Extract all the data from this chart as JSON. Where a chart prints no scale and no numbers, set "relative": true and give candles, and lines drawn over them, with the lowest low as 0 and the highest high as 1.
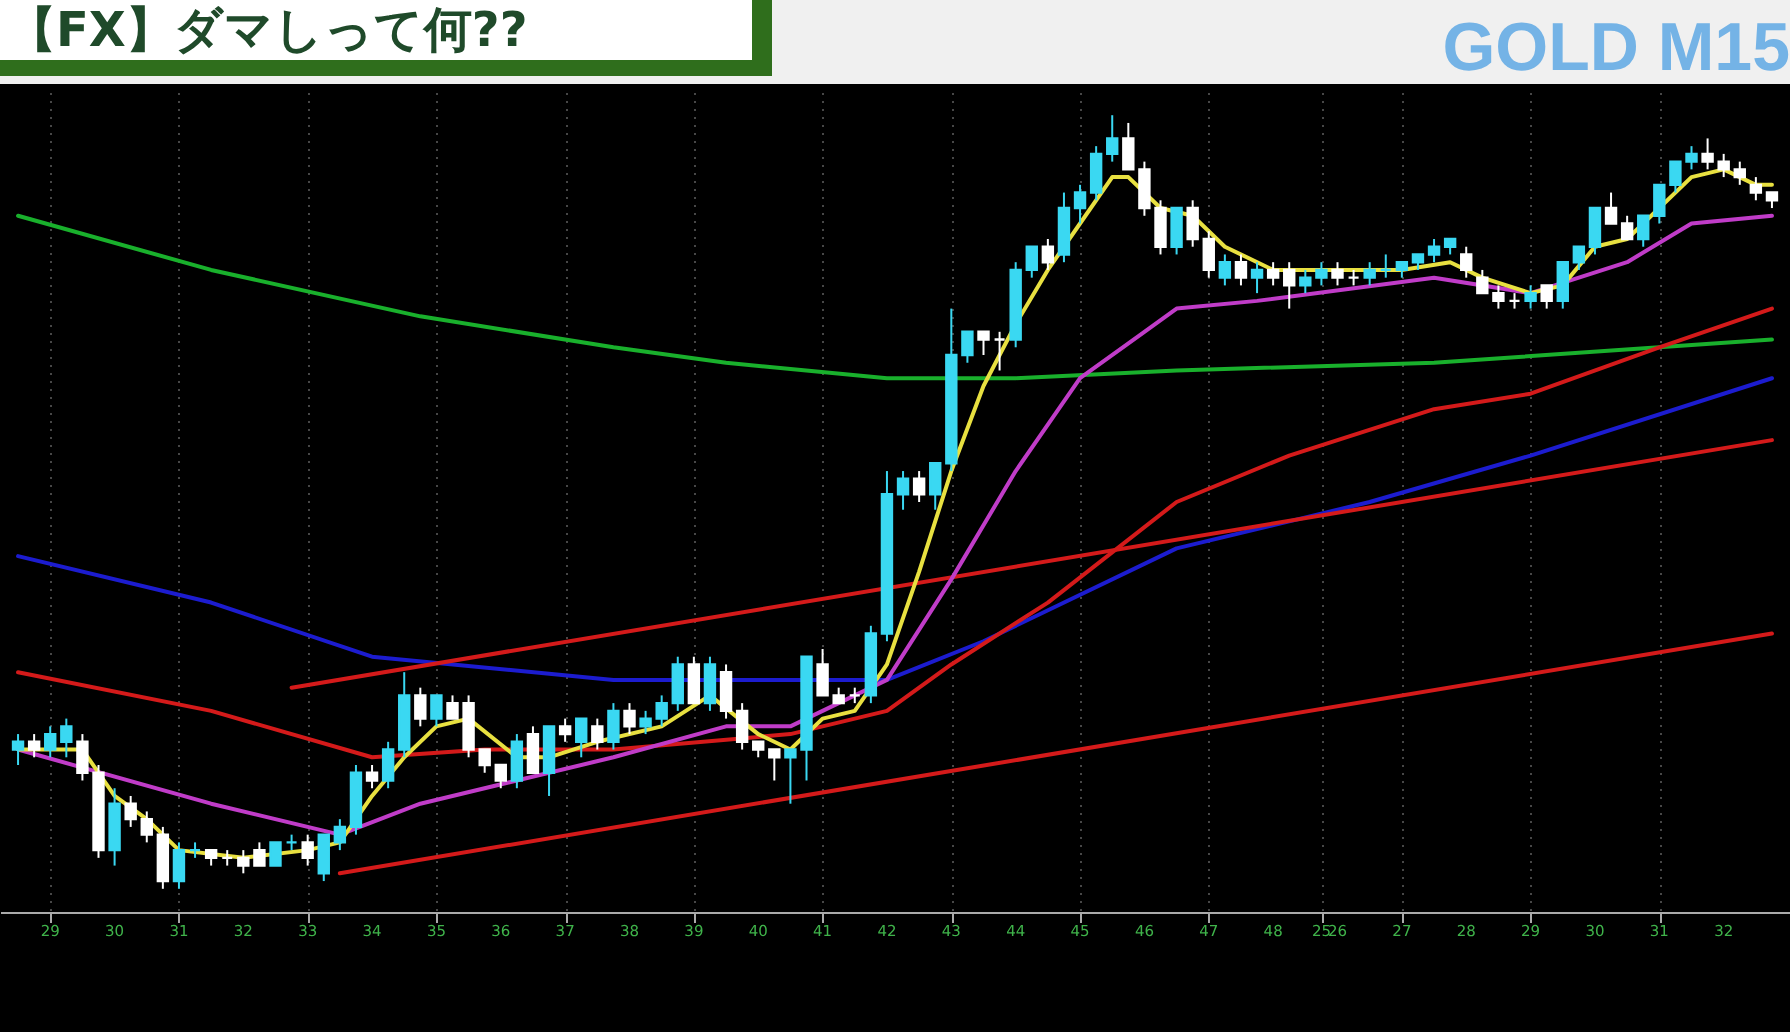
{
  "chart_data": {
    "type": "candlestick",
    "title": "【FX】ダマしって何??",
    "subtitle": "GOLD M15",
    "relative": true,
    "grid": "x",
    "categories": [
      null,
      null,
      "29",
      null,
      null,
      null,
      "30",
      null,
      null,
      null,
      "31",
      null,
      null,
      null,
      "32",
      null,
      null,
      null,
      "33",
      null,
      null,
      null,
      "34",
      null,
      null,
      null,
      "35",
      null,
      null,
      null,
      "36",
      null,
      null,
      null,
      "37",
      null,
      null,
      null,
      "38",
      null,
      null,
      null,
      "39",
      null,
      null,
      null,
      "40",
      null,
      null,
      null,
      "41",
      null,
      null,
      null,
      "42",
      null,
      null,
      null,
      "43",
      null,
      null,
      null,
      "44",
      null,
      null,
      null,
      "45",
      null,
      null,
      null,
      "46",
      null,
      null,
      null,
      "47",
      null,
      null,
      null,
      "48",
      null,
      null,
      "25",
      "26",
      null,
      null,
      null,
      "27",
      null,
      null,
      null,
      "28",
      null,
      null,
      null,
      "29",
      null,
      null,
      null,
      "30",
      null,
      null,
      null,
      "31",
      null,
      null,
      null,
      "32",
      null,
      null,
      null
    ],
    "ohlc": [
      [
        0.18,
        0.2,
        0.16,
        0.19
      ],
      [
        0.19,
        0.2,
        0.17,
        0.18
      ],
      [
        0.18,
        0.21,
        0.17,
        0.2
      ],
      [
        0.19,
        0.22,
        0.17,
        0.21
      ],
      [
        0.19,
        0.2,
        0.14,
        0.15
      ],
      [
        0.15,
        0.16,
        0.04,
        0.05
      ],
      [
        0.05,
        0.13,
        0.03,
        0.11
      ],
      [
        0.11,
        0.12,
        0.08,
        0.09
      ],
      [
        0.09,
        0.1,
        0.06,
        0.07
      ],
      [
        0.07,
        0.08,
        0,
        0.01
      ],
      [
        0.01,
        0.06,
        0,
        0.05
      ],
      [
        0.05,
        0.06,
        0.04,
        0.05
      ],
      [
        0.05,
        0.05,
        0.03,
        0.04
      ],
      [
        0.04,
        0.05,
        0.03,
        0.04
      ],
      [
        0.04,
        0.05,
        0.02,
        0.03
      ],
      [
        0.05,
        0.06,
        0.03,
        0.03
      ],
      [
        0.03,
        0.06,
        0.03,
        0.06
      ],
      [
        0.06,
        0.07,
        0.05,
        0.06
      ],
      [
        0.06,
        0.07,
        0.03,
        0.04
      ],
      [
        0.02,
        0.07,
        0.01,
        0.07
      ],
      [
        0.06,
        0.09,
        0.05,
        0.08
      ],
      [
        0.08,
        0.16,
        0.07,
        0.15
      ],
      [
        0.15,
        0.16,
        0.13,
        0.14
      ],
      [
        0.14,
        0.19,
        0.13,
        0.18
      ],
      [
        0.18,
        0.28,
        0.17,
        0.25
      ],
      [
        0.25,
        0.26,
        0.21,
        0.22
      ],
      [
        0.22,
        0.25,
        0.21,
        0.25
      ],
      [
        0.24,
        0.25,
        0.22,
        0.22
      ],
      [
        0.24,
        0.25,
        0.17,
        0.18
      ],
      [
        0.18,
        0.18,
        0.15,
        0.16
      ],
      [
        0.16,
        0.16,
        0.13,
        0.14
      ],
      [
        0.14,
        0.2,
        0.13,
        0.19
      ],
      [
        0.2,
        0.21,
        0.15,
        0.15
      ],
      [
        0.15,
        0.21,
        0.12,
        0.21
      ],
      [
        0.21,
        0.22,
        0.19,
        0.2
      ],
      [
        0.19,
        0.22,
        0.17,
        0.22
      ],
      [
        0.21,
        0.22,
        0.18,
        0.19
      ],
      [
        0.19,
        0.24,
        0.18,
        0.23
      ],
      [
        0.23,
        0.24,
        0.2,
        0.21
      ],
      [
        0.21,
        0.23,
        0.2,
        0.22
      ],
      [
        0.22,
        0.25,
        0.21,
        0.24
      ],
      [
        0.24,
        0.3,
        0.23,
        0.29
      ],
      [
        0.29,
        0.3,
        0.24,
        0.24
      ],
      [
        0.24,
        0.3,
        0.23,
        0.29
      ],
      [
        0.28,
        0.29,
        0.22,
        0.23
      ],
      [
        0.23,
        0.24,
        0.18,
        0.19
      ],
      [
        0.19,
        0.19,
        0.17,
        0.18
      ],
      [
        0.18,
        0.18,
        0.14,
        0.17
      ],
      [
        0.17,
        0.18,
        0.11,
        0.18
      ],
      [
        0.18,
        0.3,
        0.14,
        0.3
      ],
      [
        0.29,
        0.31,
        0.25,
        0.25
      ],
      [
        0.25,
        0.26,
        0.24,
        0.24
      ],
      [
        0.25,
        0.26,
        0.24,
        0.25
      ],
      [
        0.25,
        0.34,
        0.24,
        0.33
      ],
      [
        0.33,
        0.54,
        0.32,
        0.51
      ],
      [
        0.51,
        0.54,
        0.49,
        0.53
      ],
      [
        0.53,
        0.54,
        0.5,
        0.51
      ],
      [
        0.51,
        0.55,
        0.49,
        0.55
      ],
      [
        0.55,
        0.75,
        0.54,
        0.69
      ],
      [
        0.69,
        0.72,
        0.68,
        0.72
      ],
      [
        0.72,
        0.72,
        0.69,
        0.71
      ],
      [
        0.71,
        0.72,
        0.67,
        0.71
      ],
      [
        0.71,
        0.81,
        0.7,
        0.8
      ],
      [
        0.8,
        0.83,
        0.79,
        0.83
      ],
      [
        0.83,
        0.84,
        0.8,
        0.81
      ],
      [
        0.82,
        0.9,
        0.81,
        0.88
      ],
      [
        0.88,
        0.91,
        0.86,
        0.9
      ],
      [
        0.9,
        0.96,
        0.89,
        0.95
      ],
      [
        0.95,
        1.0,
        0.94,
        0.97
      ],
      [
        0.97,
        0.99,
        0.93,
        0.93
      ],
      [
        0.93,
        0.94,
        0.87,
        0.88
      ],
      [
        0.88,
        0.89,
        0.82,
        0.83
      ],
      [
        0.83,
        0.88,
        0.82,
        0.88
      ],
      [
        0.88,
        0.89,
        0.83,
        0.84
      ],
      [
        0.84,
        0.85,
        0.79,
        0.8
      ],
      [
        0.79,
        0.82,
        0.78,
        0.81
      ],
      [
        0.81,
        0.82,
        0.78,
        0.79
      ],
      [
        0.79,
        0.81,
        0.77,
        0.8
      ],
      [
        0.8,
        0.81,
        0.78,
        0.79
      ],
      [
        0.8,
        0.81,
        0.75,
        0.78
      ],
      [
        0.78,
        0.8,
        0.77,
        0.79
      ],
      [
        0.79,
        0.81,
        0.78,
        0.8
      ],
      [
        0.8,
        0.81,
        0.78,
        0.79
      ],
      [
        0.79,
        0.8,
        0.78,
        0.79
      ],
      [
        0.79,
        0.81,
        0.78,
        0.8
      ],
      [
        0.8,
        0.82,
        0.79,
        0.8
      ],
      [
        0.8,
        0.81,
        0.79,
        0.81
      ],
      [
        0.81,
        0.82,
        0.8,
        0.82
      ],
      [
        0.82,
        0.84,
        0.81,
        0.83
      ],
      [
        0.83,
        0.84,
        0.82,
        0.84
      ],
      [
        0.82,
        0.83,
        0.79,
        0.8
      ],
      [
        0.79,
        0.8,
        0.77,
        0.77
      ],
      [
        0.77,
        0.78,
        0.75,
        0.76
      ],
      [
        0.76,
        0.77,
        0.75,
        0.76
      ],
      [
        0.76,
        0.78,
        0.75,
        0.77
      ],
      [
        0.78,
        0.78,
        0.75,
        0.76
      ],
      [
        0.76,
        0.81,
        0.75,
        0.81
      ],
      [
        0.81,
        0.83,
        0.8,
        0.83
      ],
      [
        0.83,
        0.88,
        0.82,
        0.88
      ],
      [
        0.88,
        0.9,
        0.86,
        0.86
      ],
      [
        0.86,
        0.87,
        0.84,
        0.84
      ],
      [
        0.84,
        0.87,
        0.83,
        0.87
      ],
      [
        0.87,
        0.91,
        0.86,
        0.91
      ],
      [
        0.91,
        0.94,
        0.9,
        0.94
      ],
      [
        0.94,
        0.96,
        0.93,
        0.95
      ],
      [
        0.95,
        0.97,
        0.93,
        0.94
      ],
      [
        0.94,
        0.95,
        0.92,
        0.93
      ],
      [
        0.93,
        0.94,
        0.91,
        0.92
      ],
      [
        0.91,
        0.92,
        0.89,
        0.9
      ],
      [
        0.9,
        0.9,
        0.88,
        0.89
      ]
    ],
    "colors": [
      "#3ad8f2",
      "#ffffff",
      "#3ad8f2",
      "#3ad8f2",
      "#ffffff",
      "#ffffff",
      "#3ad8f2",
      "#ffffff",
      "#ffffff",
      "#ffffff",
      "#3ad8f2",
      "#3ad8f2",
      "#ffffff",
      "#ffffff",
      "#ffffff",
      "#ffffff",
      "#3ad8f2",
      "#3ad8f2",
      "#ffffff",
      "#3ad8f2",
      "#3ad8f2",
      "#3ad8f2",
      "#ffffff",
      "#3ad8f2",
      "#3ad8f2",
      "#ffffff",
      "#3ad8f2",
      "#ffffff",
      "#ffffff",
      "#ffffff",
      "#ffffff",
      "#3ad8f2",
      "#ffffff",
      "#3ad8f2",
      "#ffffff",
      "#3ad8f2",
      "#ffffff",
      "#3ad8f2",
      "#ffffff",
      "#3ad8f2",
      "#3ad8f2",
      "#3ad8f2",
      "#ffffff",
      "#3ad8f2",
      "#ffffff",
      "#ffffff",
      "#ffffff",
      "#ffffff",
      "#3ad8f2",
      "#3ad8f2",
      "#ffffff",
      "#ffffff",
      "#ffffff",
      "#3ad8f2",
      "#3ad8f2",
      "#3ad8f2",
      "#ffffff",
      "#3ad8f2",
      "#3ad8f2",
      "#3ad8f2",
      "#ffffff",
      "#ffffff",
      "#3ad8f2",
      "#3ad8f2",
      "#ffffff",
      "#3ad8f2",
      "#3ad8f2",
      "#3ad8f2",
      "#3ad8f2",
      "#ffffff",
      "#ffffff",
      "#ffffff",
      "#3ad8f2",
      "#ffffff",
      "#ffffff",
      "#3ad8f2",
      "#ffffff",
      "#3ad8f2",
      "#ffffff",
      "#ffffff",
      "#3ad8f2",
      "#3ad8f2",
      "#ffffff",
      "#ffffff",
      "#3ad8f2",
      "#3ad8f2",
      "#3ad8f2",
      "#3ad8f2",
      "#3ad8f2",
      "#3ad8f2",
      "#ffffff",
      "#ffffff",
      "#ffffff",
      "#ffffff",
      "#3ad8f2",
      "#ffffff",
      "#3ad8f2",
      "#3ad8f2",
      "#3ad8f2",
      "#ffffff",
      "#ffffff",
      "#3ad8f2",
      "#3ad8f2",
      "#3ad8f2",
      "#3ad8f2",
      "#ffffff",
      "#ffffff",
      "#ffffff",
      "#ffffff",
      "#ffffff"
    ],
    "series": [
      {
        "type": "line",
        "color": "#19b02c",
        "values": [
          0.87,
          null,
          null,
          null,
          null,
          null,
          null,
          null,
          null,
          null,
          null,
          null,
          0.8,
          null,
          null,
          null,
          null,
          null,
          null,
          null,
          null,
          null,
          null,
          null,
          null,
          0.74,
          null,
          null,
          null,
          null,
          null,
          null,
          null,
          null,
          null,
          null,
          null,
          0.7,
          null,
          null,
          null,
          null,
          null,
          null,
          0.68,
          null,
          null,
          null,
          null,
          null,
          null,
          null,
          null,
          null,
          0.66,
          null,
          null,
          null,
          null,
          null,
          null,
          null,
          0.66,
          null,
          null,
          null,
          null,
          null,
          null,
          null,
          null,
          null,
          0.67,
          null,
          null,
          null,
          null,
          null,
          null,
          null,
          null,
          null,
          null,
          null,
          null,
          null,
          null,
          null,
          0.68,
          null,
          null,
          null,
          null,
          null,
          null,
          null,
          null,
          null,
          null,
          null,
          null,
          null,
          null,
          null,
          null,
          null,
          null,
          null,
          null,
          0.71
        ]
      },
      {
        "type": "line",
        "color": "#1c1ccf",
        "values": [
          0.43,
          null,
          null,
          null,
          null,
          null,
          null,
          null,
          null,
          null,
          null,
          null,
          0.37,
          null,
          null,
          null,
          null,
          null,
          null,
          null,
          null,
          null,
          0.3,
          null,
          null,
          null,
          null,
          null,
          null,
          null,
          null,
          null,
          null,
          null,
          null,
          null,
          null,
          0.27,
          null,
          null,
          null,
          null,
          null,
          null,
          0.27,
          null,
          null,
          null,
          null,
          null,
          null,
          null,
          null,
          null,
          0.27,
          null,
          null,
          null,
          null,
          null,
          0.32,
          null,
          null,
          null,
          null,
          null,
          null,
          null,
          null,
          null,
          null,
          null,
          0.44,
          null,
          null,
          null,
          null,
          null,
          null,
          null,
          null,
          null,
          null,
          null,
          0.5,
          null,
          null,
          null,
          null,
          null,
          null,
          null,
          null,
          null,
          0.56,
          null,
          null,
          null,
          null,
          null,
          null,
          null,
          null,
          null,
          null,
          null,
          null,
          null,
          null,
          0.66
        ]
      },
      {
        "type": "line",
        "color": "#d41a1a",
        "values": [
          0.28,
          null,
          null,
          null,
          null,
          null,
          null,
          null,
          null,
          null,
          null,
          null,
          0.23,
          null,
          null,
          null,
          null,
          null,
          null,
          null,
          null,
          null,
          0.17,
          null,
          null,
          null,
          null,
          null,
          null,
          0.18,
          null,
          null,
          null,
          null,
          null,
          null,
          null,
          0.18,
          null,
          null,
          null,
          null,
          null,
          null,
          null,
          null,
          null,
          null,
          0.2,
          null,
          null,
          null,
          null,
          null,
          0.23,
          null,
          null,
          null,
          0.29,
          null,
          null,
          null,
          null,
          null,
          0.37,
          null,
          null,
          null,
          null,
          null,
          null,
          null,
          0.5,
          null,
          null,
          null,
          null,
          null,
          null,
          0.56,
          null,
          null,
          null,
          null,
          null,
          null,
          null,
          null,
          0.62,
          null,
          null,
          null,
          null,
          null,
          0.64,
          null,
          null,
          null,
          null,
          null,
          null,
          null,
          0.7,
          null,
          null,
          null,
          null,
          null,
          null,
          0.75
        ]
      },
      {
        "type": "line",
        "color": "#d41a1a",
        "values": [
          null,
          null,
          null,
          null,
          null,
          null,
          null,
          null,
          null,
          null,
          null,
          null,
          null,
          null,
          null,
          null,
          null,
          0.26,
          null,
          null,
          null,
          null,
          null,
          null,
          null,
          null,
          null,
          null,
          null,
          null,
          null,
          null,
          null,
          null,
          null,
          null,
          null,
          null,
          null,
          null,
          null,
          null,
          null,
          null,
          null,
          null,
          null,
          null,
          null,
          null,
          null,
          null,
          null,
          null,
          null,
          null,
          null,
          null,
          null,
          null,
          null,
          null,
          null,
          null,
          null,
          null,
          null,
          null,
          null,
          null,
          null,
          null,
          null,
          null,
          null,
          null,
          null,
          null,
          null,
          null,
          null,
          null,
          null,
          null,
          null,
          null,
          null,
          null,
          null,
          null,
          null,
          null,
          null,
          null,
          null,
          null,
          null,
          null,
          null,
          null,
          null,
          null,
          null,
          null,
          null,
          null,
          null,
          null,
          null,
          0.58
        ]
      },
      {
        "type": "line",
        "color": "#d41a1a",
        "values": [
          null,
          null,
          null,
          null,
          null,
          null,
          null,
          null,
          null,
          null,
          null,
          null,
          null,
          null,
          null,
          null,
          null,
          null,
          null,
          null,
          0.02,
          null,
          null,
          null,
          null,
          null,
          null,
          null,
          null,
          null,
          null,
          null,
          null,
          null,
          null,
          null,
          null,
          null,
          null,
          null,
          null,
          null,
          null,
          null,
          null,
          null,
          null,
          null,
          null,
          null,
          null,
          null,
          null,
          null,
          null,
          null,
          null,
          null,
          null,
          null,
          null,
          null,
          null,
          null,
          null,
          null,
          null,
          null,
          null,
          null,
          null,
          null,
          null,
          null,
          null,
          null,
          null,
          null,
          null,
          null,
          null,
          null,
          null,
          null,
          null,
          null,
          null,
          null,
          null,
          null,
          null,
          null,
          null,
          null,
          null,
          null,
          null,
          null,
          null,
          null,
          null,
          null,
          null,
          null,
          null,
          null,
          null,
          null,
          null,
          0.33
        ]
      },
      {
        "type": "line",
        "color": "#c03cc8",
        "values": [
          0.18,
          null,
          null,
          null,
          null,
          null,
          null,
          null,
          null,
          null,
          null,
          null,
          0.11,
          null,
          null,
          null,
          null,
          null,
          null,
          null,
          0.07,
          null,
          null,
          null,
          null,
          0.11,
          null,
          null,
          null,
          null,
          null,
          null,
          null,
          null,
          null,
          null,
          null,
          0.17,
          null,
          null,
          null,
          null,
          null,
          null,
          0.21,
          null,
          null,
          null,
          0.21,
          null,
          null,
          null,
          null,
          null,
          0.27,
          null,
          null,
          null,
          0.4,
          null,
          null,
          null,
          0.54,
          null,
          null,
          null,
          0.66,
          null,
          null,
          null,
          0.72,
          null,
          0.75,
          null,
          null,
          null,
          null,
          0.76,
          null,
          null,
          null,
          null,
          null,
          null,
          null,
          null,
          null,
          null,
          0.79,
          null,
          null,
          null,
          null,
          null,
          0.77,
          null,
          null,
          null,
          null,
          null,
          0.81,
          null,
          null,
          null,
          0.86,
          null,
          null,
          null,
          null,
          0.87
        ]
      },
      {
        "type": "line",
        "color": "#e8e040",
        "values": [
          0.18,
          null,
          null,
          null,
          0.18,
          null,
          0.12,
          null,
          0.09,
          null,
          0.05,
          null,
          null,
          null,
          0.04,
          null,
          null,
          null,
          0.05,
          null,
          0.06,
          null,
          0.12,
          null,
          0.17,
          null,
          0.21,
          null,
          0.22,
          null,
          null,
          0.17,
          null,
          0.17,
          null,
          null,
          0.19,
          null,
          null,
          null,
          0.21,
          null,
          null,
          0.25,
          null,
          null,
          0.2,
          null,
          0.18,
          null,
          0.22,
          null,
          0.23,
          null,
          0.29,
          null,
          0.41,
          null,
          0.54,
          null,
          0.65,
          null,
          0.73,
          null,
          0.8,
          null,
          0.86,
          null,
          0.92,
          0.92,
          null,
          0.88,
          null,
          0.87,
          null,
          0.83,
          null,
          null,
          0.8,
          null,
          null,
          null,
          0.8,
          null,
          null,
          null,
          0.8,
          null,
          null,
          0.81,
          null,
          0.79,
          null,
          null,
          0.77,
          null,
          0.78,
          null,
          0.83,
          null,
          0.84,
          null,
          0.88,
          null,
          0.92,
          null,
          0.93,
          null,
          0.91,
          0.91
        ]
      }
    ]
  }
}
